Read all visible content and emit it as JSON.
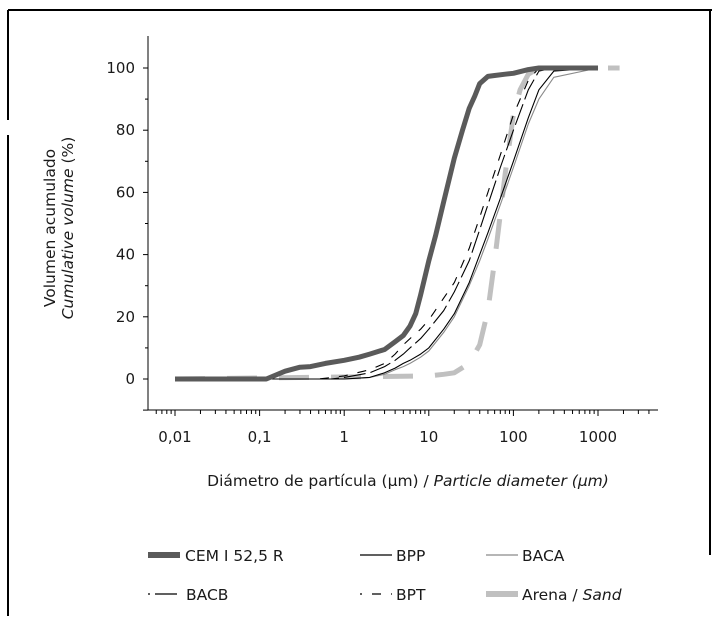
{
  "chart_data": {
    "type": "line",
    "title": "",
    "xscale": "log",
    "xlim": [
      0.01,
      1000
    ],
    "ylim": [
      0,
      100
    ],
    "x_ticks": [
      "0,01",
      "0,1",
      "1",
      "10",
      "100",
      "1000"
    ],
    "y_ticks": [
      "0",
      "20",
      "40",
      "60",
      "80",
      "100"
    ],
    "ylabel": {
      "line1": "Volumen acumulado",
      "line2_italic": "Cumulative volume",
      "line2_unit": " (%)"
    },
    "xlabel": {
      "plain": "Diámetro de partícula (µm) / ",
      "italic": "Particle diameter",
      "unit": " (µm)"
    },
    "grid": false,
    "legend_position": "bottom",
    "series": [
      {
        "name": "CEM I 52,5 R",
        "color": "#5a5a5a",
        "style": "thick-solid",
        "x": [
          0.01,
          0.12,
          0.2,
          0.3,
          0.4,
          0.6,
          1,
          1.5,
          2,
          3,
          4,
          5,
          6,
          7,
          8,
          10,
          12,
          15,
          20,
          25,
          30,
          35,
          40,
          50,
          60,
          80,
          100,
          150,
          200,
          300,
          1000
        ],
        "y": [
          0,
          0,
          2.5,
          3.8,
          4,
          5,
          6,
          7,
          8,
          9.5,
          12,
          14,
          17,
          21,
          27,
          38,
          46,
          57,
          71,
          80,
          87,
          91,
          95,
          97.3,
          97.6,
          98,
          98.3,
          99.5,
          100,
          100,
          100
        ]
      },
      {
        "name": "BPP",
        "color": "#000000",
        "style": "thin-solid",
        "x": [
          0.01,
          1,
          2,
          3,
          4,
          5,
          6,
          8,
          10,
          15,
          20,
          30,
          40,
          50,
          70,
          100,
          150,
          200,
          300,
          1000
        ],
        "y": [
          0,
          0,
          0.5,
          2,
          3.5,
          5,
          6,
          8,
          10,
          16,
          21,
          31,
          40,
          47,
          58,
          70,
          84,
          93,
          99,
          100
        ]
      },
      {
        "name": "BACA",
        "color": "#8a8a8a",
        "style": "thin-solid",
        "x": [
          0.01,
          1,
          2,
          3,
          4,
          5,
          6,
          8,
          10,
          15,
          20,
          30,
          40,
          50,
          70,
          100,
          150,
          200,
          300,
          1000
        ],
        "y": [
          0,
          0,
          0.5,
          1.5,
          3,
          4,
          5,
          7,
          9,
          15,
          20,
          30,
          38,
          45,
          56,
          68,
          82,
          90,
          97,
          100
        ]
      },
      {
        "name": "BACB",
        "color": "#000000",
        "style": "dash-long",
        "x": [
          0.01,
          0.7,
          1,
          2,
          3,
          4,
          5,
          6,
          8,
          10,
          15,
          20,
          30,
          40,
          50,
          70,
          100,
          150,
          200,
          300,
          1000
        ],
        "y": [
          0,
          0,
          0.5,
          2,
          4,
          6,
          8,
          10,
          13,
          16,
          22,
          28,
          38,
          48,
          56,
          68,
          80,
          93,
          99,
          100,
          100
        ]
      },
      {
        "name": "BPT",
        "color": "#000000",
        "style": "dash-short",
        "x": [
          0.01,
          0.5,
          1,
          2,
          3,
          4,
          5,
          6,
          8,
          10,
          15,
          20,
          30,
          40,
          50,
          70,
          100,
          150,
          200,
          300,
          1000
        ],
        "y": [
          0,
          0,
          1,
          3,
          5,
          8,
          11,
          13,
          16,
          19,
          26,
          31,
          42,
          52,
          60,
          72,
          85,
          96,
          100,
          100,
          100
        ]
      },
      {
        "name": "Arena / ",
        "name_italic": "Sand",
        "color": "#c0c0c0",
        "style": "thick-dashed",
        "x": [
          0.01,
          10,
          15,
          20,
          30,
          40,
          50,
          60,
          70,
          80,
          100,
          120,
          150,
          200,
          300,
          1000,
          1800
        ],
        "y": [
          0,
          1,
          1.5,
          2,
          5,
          11,
          22,
          38,
          53,
          66,
          85,
          93,
          98,
          100,
          100,
          100,
          100
        ]
      }
    ]
  }
}
